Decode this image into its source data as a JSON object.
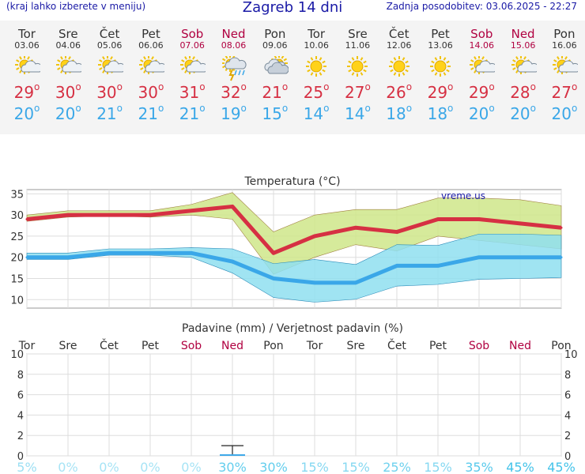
{
  "header": {
    "menu_hint": "(kraj lahko izberete v meniju)",
    "title": "Zagreb 14 dni",
    "updated": "Zadnja posodobitev: 03.06.2025 - 22:27"
  },
  "days": [
    {
      "name": "Tor",
      "date": "03.06",
      "weekend": false,
      "icon": "sun-cloud-icon",
      "tmax": "29",
      "tmin": "20"
    },
    {
      "name": "Sre",
      "date": "04.06",
      "weekend": false,
      "icon": "sun-cloud-icon",
      "tmax": "30",
      "tmin": "20"
    },
    {
      "name": "Čet",
      "date": "05.06",
      "weekend": false,
      "icon": "sun-cloud-icon",
      "tmax": "30",
      "tmin": "21"
    },
    {
      "name": "Pet",
      "date": "06.06",
      "weekend": false,
      "icon": "sun-cloud-icon",
      "tmax": "30",
      "tmin": "21"
    },
    {
      "name": "Sob",
      "date": "07.06",
      "weekend": true,
      "icon": "sun-cloud-icon",
      "tmax": "31",
      "tmin": "21"
    },
    {
      "name": "Ned",
      "date": "08.06",
      "weekend": true,
      "icon": "thunderstorm-icon",
      "tmax": "32",
      "tmin": "19"
    },
    {
      "name": "Pon",
      "date": "09.06",
      "weekend": false,
      "icon": "cloudy-icon",
      "tmax": "21",
      "tmin": "15"
    },
    {
      "name": "Tor",
      "date": "10.06",
      "weekend": false,
      "icon": "sun-icon",
      "tmax": "25",
      "tmin": "14"
    },
    {
      "name": "Sre",
      "date": "11.06",
      "weekend": false,
      "icon": "sun-icon",
      "tmax": "27",
      "tmin": "14"
    },
    {
      "name": "Čet",
      "date": "12.06",
      "weekend": false,
      "icon": "sun-icon",
      "tmax": "26",
      "tmin": "18"
    },
    {
      "name": "Pet",
      "date": "13.06",
      "weekend": false,
      "icon": "sun-icon",
      "tmax": "29",
      "tmin": "18"
    },
    {
      "name": "Sob",
      "date": "14.06",
      "weekend": true,
      "icon": "sun-cloud-icon",
      "tmax": "29",
      "tmin": "20"
    },
    {
      "name": "Ned",
      "date": "15.06",
      "weekend": true,
      "icon": "sun-cloud-icon",
      "tmax": "28",
      "tmin": "20"
    },
    {
      "name": "Pon",
      "date": "16.06",
      "weekend": false,
      "icon": "sun-cloud-icon",
      "tmax": "27",
      "tmin": "20"
    }
  ],
  "degree_symbol": "o",
  "colors": {
    "max": "#d63043",
    "min": "#3aa7e8",
    "max_band": "#cfe68a",
    "min_band": "#8fdff0",
    "weekend": "#b00040",
    "rain_bar": "#3aa7e8"
  },
  "chart_data": [
    {
      "type": "line",
      "title": "Temperatura (°C)",
      "watermark": "vreme.us",
      "x": [
        "03.06",
        "04.06",
        "05.06",
        "06.06",
        "07.06",
        "08.06",
        "09.06",
        "10.06",
        "11.06",
        "12.06",
        "13.06",
        "14.06",
        "15.06",
        "16.06"
      ],
      "ylim": [
        8,
        36
      ],
      "yticks": [
        10,
        15,
        20,
        25,
        30,
        35
      ],
      "series": [
        {
          "role": "max",
          "values": [
            29,
            30,
            30,
            30,
            31,
            32,
            21,
            25,
            27,
            26,
            29,
            29,
            28,
            27
          ],
          "band_low": [
            28.5,
            29.5,
            29.8,
            29.5,
            30,
            29,
            16,
            20,
            23,
            21.5,
            25,
            24,
            23,
            22
          ],
          "band_high": [
            30,
            31,
            31,
            31,
            32.5,
            35.3,
            26,
            30,
            31.3,
            31.3,
            34,
            34,
            33.6,
            32.2
          ]
        },
        {
          "role": "min",
          "values": [
            20,
            20,
            21,
            21,
            21,
            19,
            15,
            14,
            14,
            18,
            18,
            20,
            20,
            20
          ],
          "band_low": [
            19.5,
            19.5,
            20.5,
            20.5,
            20,
            16.3,
            10.5,
            9.4,
            10.1,
            13.2,
            13.6,
            14.8,
            15,
            15.2
          ],
          "band_high": [
            21,
            21,
            22,
            22,
            22.3,
            22,
            18.5,
            19.5,
            18.3,
            23,
            22.8,
            25.5,
            25.5,
            25.2
          ]
        }
      ]
    },
    {
      "type": "bar",
      "title": "Padavine (mm) / Verjetnost padavin (%)",
      "categories": [
        "Tor",
        "Sre",
        "Čet",
        "Pet",
        "Sob",
        "Ned",
        "Pon",
        "Tor",
        "Sre",
        "Čet",
        "Pet",
        "Sob",
        "Ned",
        "Pon"
      ],
      "weekend": [
        false,
        false,
        false,
        false,
        true,
        true,
        false,
        false,
        false,
        false,
        false,
        true,
        true,
        false
      ],
      "values": [
        0,
        0,
        0,
        0,
        0,
        0.15,
        0,
        0,
        0,
        0,
        0,
        0,
        0,
        0
      ],
      "error_high": [
        null,
        null,
        null,
        null,
        null,
        1,
        null,
        null,
        null,
        null,
        null,
        null,
        null,
        null
      ],
      "probability": [
        "5%",
        "0%",
        "0%",
        "0%",
        "0%",
        "30%",
        "30%",
        "15%",
        "15%",
        "25%",
        "15%",
        "35%",
        "45%",
        "45%"
      ],
      "ylim": [
        0,
        10
      ],
      "yticks": [
        0,
        2,
        4,
        6,
        8,
        10
      ]
    }
  ]
}
